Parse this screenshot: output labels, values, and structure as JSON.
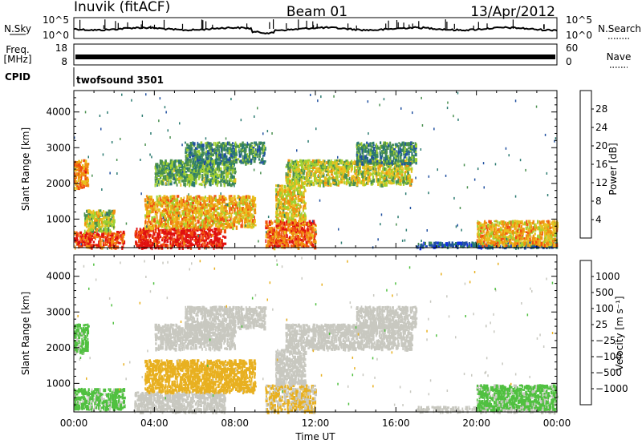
{
  "header": {
    "station": "Inuvik (fitACF)",
    "beam": "Beam 01",
    "date": "13/Apr/2012"
  },
  "param_panels": {
    "nsky": {
      "label": "N.Sky",
      "ticks": [
        "10^5",
        "10^0"
      ],
      "right_label": "N.Search",
      "right_ticks": [
        "10^5",
        "10^0"
      ]
    },
    "freq": {
      "label_line1": "Freq.",
      "label_line2": "[MHz]",
      "ticks": [
        "18",
        "8"
      ],
      "right_label": "Nave",
      "right_ticks": [
        "60",
        "0"
      ]
    },
    "cpid": {
      "label": "CPID",
      "program": "twofsound 3501"
    }
  },
  "colors": {
    "power_scale": [
      "#1030e0",
      "#2050a0",
      "#2a7a70",
      "#4a9050",
      "#a0d030",
      "#e8c020",
      "#f09010",
      "#f05010",
      "#e01010"
    ],
    "velocity_scale": [
      "#1a2ea0",
      "#2a6ac0",
      "#2a7a60",
      "#50c040",
      "#c8c8c0",
      "#e8b020",
      "#f08010",
      "#f03010",
      "#d00000"
    ]
  },
  "chart_data": [
    {
      "type": "heatmap",
      "name": "power",
      "xlabel": "",
      "ylabel": "Slant Range [km]",
      "x_range_hours": [
        0,
        24
      ],
      "y_range_km": [
        200,
        4600
      ],
      "y_ticks": [
        "4000",
        "3000",
        "2000",
        "1000"
      ],
      "colorbar": {
        "label": "Power [dB]",
        "ticks": [
          "28",
          "24",
          "20",
          "16",
          "12",
          "8",
          "4"
        ],
        "range": [
          0,
          30
        ]
      },
      "echo_regions": [
        {
          "t0": 0.0,
          "t1": 0.7,
          "r0": 1900,
          "r1": 2700,
          "value": 22
        },
        {
          "t0": 0.0,
          "t1": 2.5,
          "r0": 250,
          "r1": 700,
          "value": 26
        },
        {
          "t0": 0.5,
          "t1": 2.0,
          "r0": 700,
          "r1": 1300,
          "value": 16
        },
        {
          "t0": 3.0,
          "t1": 7.5,
          "r0": 250,
          "r1": 800,
          "value": 28
        },
        {
          "t0": 3.5,
          "t1": 9.0,
          "r0": 800,
          "r1": 1700,
          "value": 20
        },
        {
          "t0": 4.0,
          "t1": 8.0,
          "r0": 2000,
          "r1": 2700,
          "value": 12
        },
        {
          "t0": 5.5,
          "t1": 9.5,
          "r0": 2600,
          "r1": 3200,
          "value": 10
        },
        {
          "t0": 9.5,
          "t1": 12.0,
          "r0": 250,
          "r1": 1000,
          "value": 24
        },
        {
          "t0": 10.0,
          "t1": 11.5,
          "r0": 1000,
          "r1": 2000,
          "value": 18
        },
        {
          "t0": 10.5,
          "t1": 16.8,
          "r0": 2000,
          "r1": 2700,
          "value": 16
        },
        {
          "t0": 14.0,
          "t1": 17.0,
          "r0": 2600,
          "r1": 3200,
          "value": 10
        },
        {
          "t0": 17.0,
          "t1": 24.0,
          "r0": 250,
          "r1": 400,
          "value": 6
        },
        {
          "t0": 20.0,
          "t1": 24.0,
          "r0": 300,
          "r1": 1000,
          "value": 20
        }
      ]
    },
    {
      "type": "heatmap",
      "name": "velocity",
      "xlabel": "Time UT",
      "ylabel": "Slant Range [km]",
      "x_range_hours": [
        0,
        24
      ],
      "x_ticks": [
        "00:00",
        "04:00",
        "08:00",
        "12:00",
        "16:00",
        "20:00",
        "00:00"
      ],
      "y_range_km": [
        200,
        4600
      ],
      "y_ticks": [
        "4000",
        "3000",
        "2000",
        "1000"
      ],
      "colorbar": {
        "label": "Velocity [m s⁻¹]",
        "ticks": [
          "1000",
          "500",
          "100",
          "25",
          "−25",
          "−100",
          "−500",
          "−1000"
        ],
        "range": [
          -1000,
          1000
        ]
      },
      "echo_regions": [
        {
          "t0": 0.0,
          "t1": 0.7,
          "r0": 1900,
          "r1": 2700,
          "value": -150
        },
        {
          "t0": 0.0,
          "t1": 2.5,
          "r0": 300,
          "r1": 900,
          "value": -150
        },
        {
          "t0": 3.0,
          "t1": 7.5,
          "r0": 250,
          "r1": 800,
          "value": 0
        },
        {
          "t0": 3.5,
          "t1": 9.0,
          "r0": 800,
          "r1": 1700,
          "value": 200
        },
        {
          "t0": 4.0,
          "t1": 8.0,
          "r0": 2000,
          "r1": 2700,
          "value": 0
        },
        {
          "t0": 5.5,
          "t1": 9.5,
          "r0": 2600,
          "r1": 3200,
          "value": 0
        },
        {
          "t0": 9.5,
          "t1": 12.0,
          "r0": 250,
          "r1": 1000,
          "value": 120
        },
        {
          "t0": 10.0,
          "t1": 11.5,
          "r0": 1000,
          "r1": 2000,
          "value": 0
        },
        {
          "t0": 10.5,
          "t1": 16.8,
          "r0": 2000,
          "r1": 2700,
          "value": 0
        },
        {
          "t0": 14.0,
          "t1": 17.0,
          "r0": 2600,
          "r1": 3200,
          "value": 0
        },
        {
          "t0": 17.0,
          "t1": 24.0,
          "r0": 250,
          "r1": 400,
          "value": 50
        },
        {
          "t0": 20.0,
          "t1": 24.0,
          "r0": 300,
          "r1": 1000,
          "value": -150
        }
      ]
    }
  ]
}
